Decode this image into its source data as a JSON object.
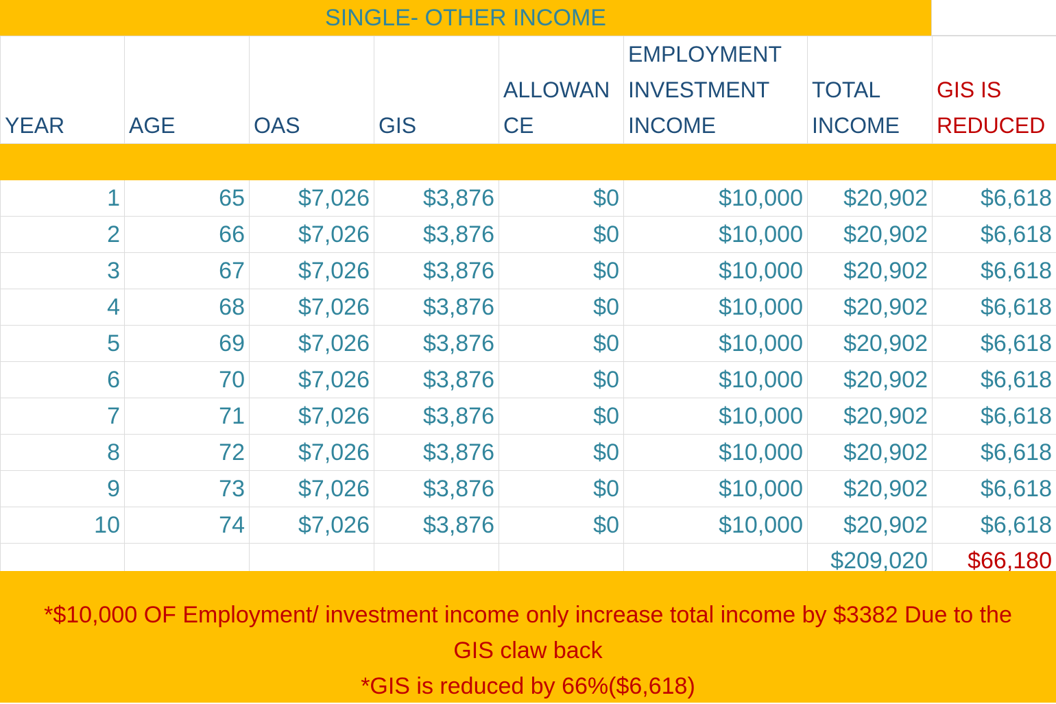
{
  "title": "SINGLE-  OTHER INCOME",
  "headers": {
    "year": "YEAR",
    "age": "AGE",
    "oas": "OAS",
    "gis": "GIS",
    "allowance_1": "ALLOWAN",
    "allowance_2": "CE",
    "employment_1": "EMPLOYMENT",
    "employment_2": "INVESTMENT",
    "employment_3": "INCOME",
    "total_1": "TOTAL",
    "total_2": "INCOME",
    "gis_reduced_1": "GIS IS",
    "gis_reduced_2": "REDUCED"
  },
  "rows": [
    {
      "year": "1",
      "age": "65",
      "oas": "$7,026",
      "gis": "$3,876",
      "allowance": "$0",
      "employment": "$10,000",
      "total": "$20,902",
      "gis_reduced": "$6,618"
    },
    {
      "year": "2",
      "age": "66",
      "oas": "$7,026",
      "gis": "$3,876",
      "allowance": "$0",
      "employment": "$10,000",
      "total": "$20,902",
      "gis_reduced": "$6,618"
    },
    {
      "year": "3",
      "age": "67",
      "oas": "$7,026",
      "gis": "$3,876",
      "allowance": "$0",
      "employment": "$10,000",
      "total": "$20,902",
      "gis_reduced": "$6,618"
    },
    {
      "year": "4",
      "age": "68",
      "oas": "$7,026",
      "gis": "$3,876",
      "allowance": "$0",
      "employment": "$10,000",
      "total": "$20,902",
      "gis_reduced": "$6,618"
    },
    {
      "year": "5",
      "age": "69",
      "oas": "$7,026",
      "gis": "$3,876",
      "allowance": "$0",
      "employment": "$10,000",
      "total": "$20,902",
      "gis_reduced": "$6,618"
    },
    {
      "year": "6",
      "age": "70",
      "oas": "$7,026",
      "gis": "$3,876",
      "allowance": "$0",
      "employment": "$10,000",
      "total": "$20,902",
      "gis_reduced": "$6,618"
    },
    {
      "year": "7",
      "age": "71",
      "oas": "$7,026",
      "gis": "$3,876",
      "allowance": "$0",
      "employment": "$10,000",
      "total": "$20,902",
      "gis_reduced": "$6,618"
    },
    {
      "year": "8",
      "age": "72",
      "oas": "$7,026",
      "gis": "$3,876",
      "allowance": "$0",
      "employment": "$10,000",
      "total": "$20,902",
      "gis_reduced": "$6,618"
    },
    {
      "year": "9",
      "age": "73",
      "oas": "$7,026",
      "gis": "$3,876",
      "allowance": "$0",
      "employment": "$10,000",
      "total": "$20,902",
      "gis_reduced": "$6,618"
    },
    {
      "year": "10",
      "age": "74",
      "oas": "$7,026",
      "gis": "$3,876",
      "allowance": "$0",
      "employment": "$10,000",
      "total": "$20,902",
      "gis_reduced": "$6,618"
    }
  ],
  "totals": {
    "total": "$209,020",
    "gis_reduced": "$66,180"
  },
  "notes": [
    "*$10,000 OF Employment/ investment income only increase total income by $3382 Due to the",
    "GIS claw back",
    "*GIS is reduced by 66%($6,618)"
  ],
  "colors": {
    "accent": "#ffc000",
    "teal": "#31859c",
    "navy": "#1f4e79",
    "red": "#c00000"
  }
}
